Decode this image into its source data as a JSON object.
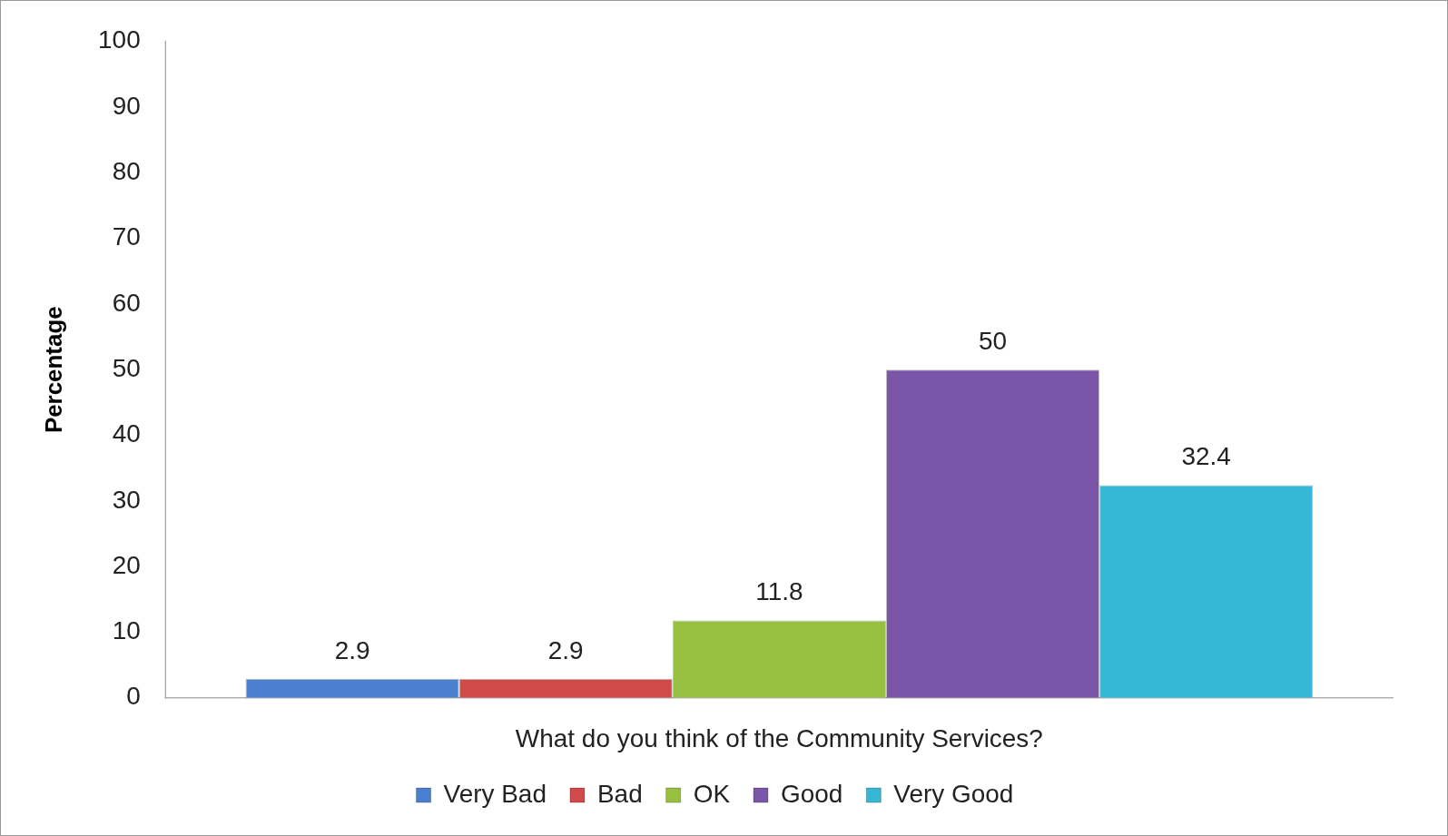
{
  "chart_data": {
    "type": "bar",
    "xlabel": "What do you think of the Community Services?",
    "ylabel": "Percentage",
    "categories": [
      null
    ],
    "series": [
      {
        "name": "Very Bad",
        "color": "#4a7fd0",
        "values": [
          2.9
        ]
      },
      {
        "name": "Bad",
        "color": "#d04a4a",
        "values": [
          2.9
        ]
      },
      {
        "name": "OK",
        "color": "#98c040",
        "values": [
          11.8
        ]
      },
      {
        "name": "Good",
        "color": "#7a55a8",
        "values": [
          50
        ]
      },
      {
        "name": "Very Good",
        "color": "#35b8d5",
        "values": [
          32.4
        ]
      }
    ],
    "ylim": [
      0,
      100
    ],
    "yticks": [
      0,
      10,
      20,
      30,
      40,
      50,
      60,
      70,
      80,
      90,
      100
    ],
    "grid": false,
    "legend": "bottom",
    "data_labels": true
  }
}
